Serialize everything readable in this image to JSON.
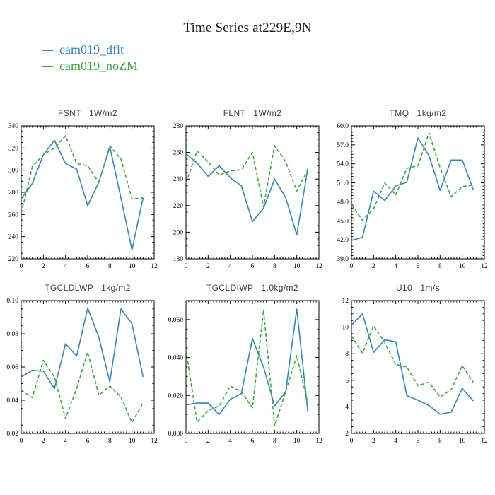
{
  "page_title": "Time Series at229E,9N",
  "legend": {
    "items": [
      {
        "label": "cam019_dflt",
        "color": "#3585c5",
        "line_style": "solid"
      },
      {
        "label": "cam019_noZM",
        "color": "#3aa83a",
        "line_style": "dashed"
      }
    ]
  },
  "colors": {
    "dflt_blue": "#3585c5",
    "noZM_green": "#3aa83a",
    "frame": "#000000"
  },
  "chart_data": [
    {
      "type": "line",
      "title": "FSNT   1W/m2",
      "var_name": "FSNT",
      "units": "1W/m2",
      "x": [
        0,
        1,
        2,
        3,
        4,
        5,
        6,
        7,
        8,
        9,
        10,
        11
      ],
      "xlim": [
        0,
        12
      ],
      "xmajor": 2,
      "xminor": 0.25,
      "xdecimals": 0,
      "ylim": [
        220,
        340
      ],
      "ymajor": 20,
      "yminor": 5,
      "ydecimals": 0,
      "series": [
        {
          "name": "cam019_dflt",
          "style": "solid",
          "color": "#3585c5",
          "values": [
            274,
            288,
            314,
            327,
            306,
            301,
            268,
            289,
            321,
            275,
            228,
            275
          ]
        },
        {
          "name": "cam019_noZM",
          "style": "dashed",
          "color": "#3aa83a",
          "values": [
            261,
            303,
            314,
            320,
            331,
            306,
            304,
            289,
            322,
            310,
            274,
            275
          ]
        }
      ]
    },
    {
      "type": "line",
      "title": "FLNT   1W/m2",
      "var_name": "FLNT",
      "units": "1W/m2",
      "x": [
        0,
        1,
        2,
        3,
        4,
        5,
        6,
        7,
        8,
        9,
        10,
        11
      ],
      "xlim": [
        0,
        12
      ],
      "xmajor": 2,
      "xminor": 0.25,
      "xdecimals": 0,
      "ylim": [
        180,
        280
      ],
      "ymajor": 20,
      "yminor": 5,
      "ydecimals": 0,
      "series": [
        {
          "name": "cam019_dflt",
          "style": "solid",
          "color": "#3585c5",
          "values": [
            259,
            252,
            242,
            250,
            241,
            235,
            208,
            218,
            240,
            226,
            198,
            248
          ]
        },
        {
          "name": "cam019_noZM",
          "style": "dashed",
          "color": "#3aa83a",
          "values": [
            237,
            261,
            253,
            243,
            246,
            247,
            260,
            219,
            265,
            253,
            231,
            247
          ]
        }
      ]
    },
    {
      "type": "line",
      "title": "TMQ   1kg/m2",
      "var_name": "TMQ",
      "units": "1kg/m2",
      "x": [
        0,
        1,
        2,
        3,
        4,
        5,
        6,
        7,
        8,
        9,
        10,
        11
      ],
      "xlim": [
        0,
        12
      ],
      "xmajor": 2,
      "xminor": 0.25,
      "xdecimals": 0,
      "ylim": [
        39.0,
        60.0
      ],
      "ymajor": 3,
      "yminor": 0.5,
      "ydecimals": 1,
      "series": [
        {
          "name": "cam019_dflt",
          "style": "solid",
          "color": "#3585c5",
          "values": [
            41.9,
            42.4,
            49.7,
            48.2,
            50.5,
            51.1,
            58.1,
            55.3,
            49.8,
            54.6,
            54.6,
            49.9
          ]
        },
        {
          "name": "cam019_noZM",
          "style": "dashed",
          "color": "#3aa83a",
          "values": [
            47.5,
            45.1,
            46.9,
            51.0,
            49.1,
            53.3,
            53.7,
            58.9,
            53.4,
            48.8,
            50.4,
            50.7
          ]
        }
      ]
    },
    {
      "type": "line",
      "title": "TGCLDLWP   1kg/m2",
      "var_name": "TGCLDLWP",
      "units": "1kg/m2",
      "x": [
        0,
        1,
        2,
        3,
        4,
        5,
        6,
        7,
        8,
        9,
        10,
        11
      ],
      "xlim": [
        0,
        12
      ],
      "xmajor": 2,
      "xminor": 0.25,
      "xdecimals": 0,
      "ylim": [
        0.02,
        0.1
      ],
      "ymajor": 0.02,
      "yminor": 0.005,
      "ydecimals": 2,
      "series": [
        {
          "name": "cam019_dflt",
          "style": "solid",
          "color": "#3585c5",
          "values": [
            0.054,
            0.058,
            0.0575,
            0.047,
            0.074,
            0.0665,
            0.0955,
            0.078,
            0.051,
            0.095,
            0.086,
            0.054
          ]
        },
        {
          "name": "cam019_noZM",
          "style": "dashed",
          "color": "#3aa83a",
          "values": [
            0.046,
            0.0415,
            0.064,
            0.054,
            0.029,
            0.047,
            0.069,
            0.043,
            0.0485,
            0.042,
            0.0265,
            0.0385
          ]
        }
      ]
    },
    {
      "type": "line",
      "title": "TGCLDIWP   1.0kg/m2",
      "var_name": "TGCLDIWP",
      "units": "1.0kg/m2",
      "x": [
        0,
        1,
        2,
        3,
        4,
        5,
        6,
        7,
        8,
        9,
        10,
        11
      ],
      "xlim": [
        0,
        12
      ],
      "xmajor": 2,
      "xminor": 0.25,
      "xdecimals": 0,
      "ylim": [
        0.0,
        0.07
      ],
      "ymajor": 0.02,
      "yminor": 0.005,
      "ydecimals": 3,
      "series": [
        {
          "name": "cam019_dflt",
          "style": "solid",
          "color": "#3585c5",
          "values": [
            0.015,
            0.016,
            0.016,
            0.01,
            0.018,
            0.021,
            0.05,
            0.035,
            0.0145,
            0.022,
            0.0655,
            0.0115
          ]
        },
        {
          "name": "cam019_noZM",
          "style": "dashed",
          "color": "#3aa83a",
          "values": [
            0.044,
            0.006,
            0.012,
            0.0145,
            0.025,
            0.022,
            0.0135,
            0.065,
            0.004,
            0.022,
            0.041,
            0.016
          ]
        }
      ]
    },
    {
      "type": "line",
      "title": "U10   1m/s",
      "var_name": "U10",
      "units": "1m/s",
      "x": [
        0,
        1,
        2,
        3,
        4,
        5,
        6,
        7,
        8,
        9,
        10,
        11
      ],
      "xlim": [
        0,
        12
      ],
      "xmajor": 2,
      "xminor": 0.25,
      "xdecimals": 0,
      "ylim": [
        2,
        12
      ],
      "ymajor": 2,
      "yminor": 0.5,
      "ydecimals": 0,
      "series": [
        {
          "name": "cam019_dflt",
          "style": "solid",
          "color": "#3585c5",
          "values": [
            10.15,
            11.0,
            8.1,
            9.05,
            8.9,
            4.85,
            4.5,
            4.1,
            3.45,
            3.6,
            5.4,
            4.45
          ]
        },
        {
          "name": "cam019_noZM",
          "style": "dashed",
          "color": "#3aa83a",
          "values": [
            9.35,
            8.05,
            10.1,
            8.85,
            7.2,
            7.0,
            5.6,
            5.85,
            4.75,
            5.3,
            7.1,
            5.85
          ]
        }
      ]
    }
  ]
}
